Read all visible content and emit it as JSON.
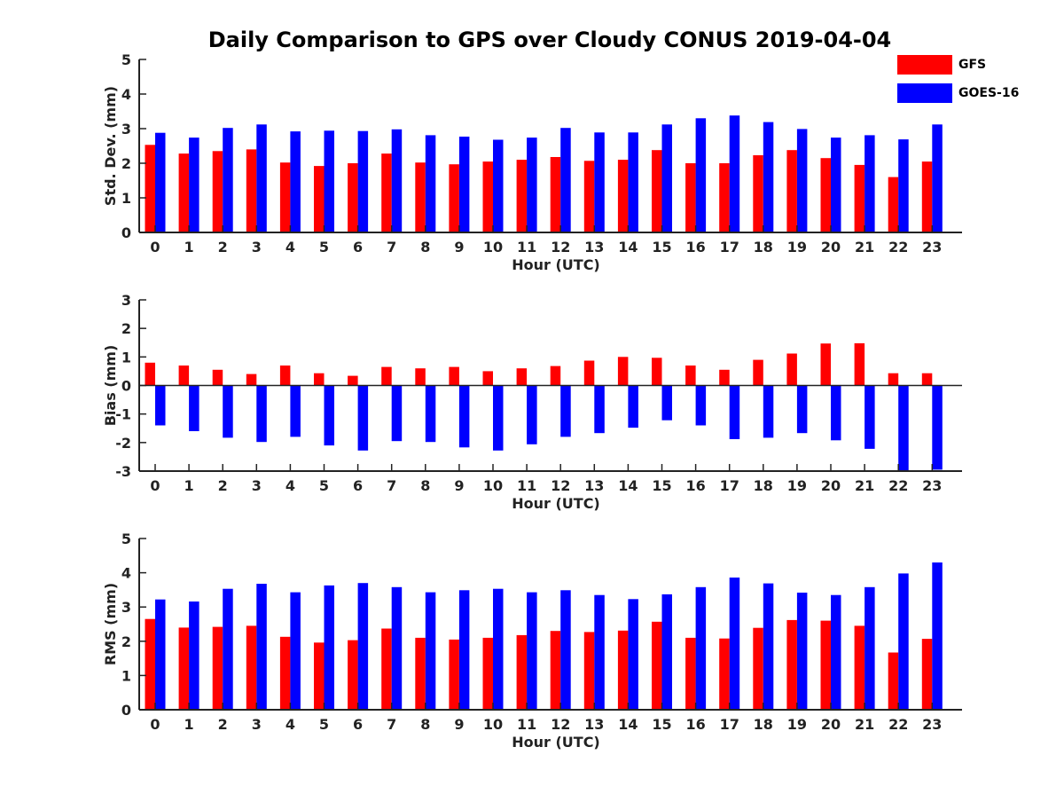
{
  "title": "Daily Comparison to GPS over Cloudy CONUS 2019-04-04",
  "legend": [
    {
      "name": "GFS",
      "color": "#ff0000"
    },
    {
      "name": "GOES-16",
      "color": "#0000ff"
    }
  ],
  "chart_data": [
    {
      "type": "bar",
      "ylabel": "Std. Dev. (mm)",
      "xlabel": "Hour (UTC)",
      "ylim": [
        0,
        5
      ],
      "yticks": [
        0,
        1,
        2,
        3,
        4,
        5
      ],
      "categories": [
        "0",
        "1",
        "2",
        "3",
        "4",
        "5",
        "6",
        "7",
        "8",
        "9",
        "10",
        "11",
        "12",
        "13",
        "14",
        "15",
        "16",
        "17",
        "18",
        "19",
        "20",
        "21",
        "22",
        "23"
      ],
      "series": [
        {
          "name": "GFS",
          "color": "#ff0000",
          "values": [
            2.53,
            2.28,
            2.35,
            2.4,
            2.02,
            1.92,
            2.0,
            2.28,
            2.02,
            1.97,
            2.05,
            2.1,
            2.18,
            2.07,
            2.1,
            2.38,
            2.0,
            2.0,
            2.23,
            2.38,
            2.15,
            1.95,
            1.6,
            2.05
          ]
        },
        {
          "name": "GOES-16",
          "color": "#0000ff",
          "values": [
            2.88,
            2.74,
            3.02,
            3.12,
            2.92,
            2.94,
            2.93,
            2.98,
            2.81,
            2.77,
            2.68,
            2.74,
            3.02,
            2.89,
            2.89,
            3.12,
            3.3,
            3.38,
            3.19,
            2.99,
            2.74,
            2.81,
            2.69,
            3.12
          ]
        }
      ]
    },
    {
      "type": "bar",
      "ylabel": "Bias (mm)",
      "xlabel": "Hour (UTC)",
      "ylim": [
        -3,
        3
      ],
      "yticks": [
        -3,
        -2,
        -1,
        0,
        1,
        2,
        3
      ],
      "categories": [
        "0",
        "1",
        "2",
        "3",
        "4",
        "5",
        "6",
        "7",
        "8",
        "9",
        "10",
        "11",
        "12",
        "13",
        "14",
        "15",
        "16",
        "17",
        "18",
        "19",
        "20",
        "21",
        "22",
        "23"
      ],
      "series": [
        {
          "name": "GFS",
          "color": "#ff0000",
          "values": [
            0.8,
            0.7,
            0.55,
            0.4,
            0.7,
            0.43,
            0.34,
            0.65,
            0.6,
            0.65,
            0.5,
            0.6,
            0.68,
            0.87,
            1.0,
            0.97,
            0.7,
            0.55,
            0.9,
            1.12,
            1.47,
            1.48,
            0.43,
            0.43
          ]
        },
        {
          "name": "GOES-16",
          "color": "#0000ff",
          "values": [
            -1.4,
            -1.6,
            -1.83,
            -1.98,
            -1.8,
            -2.1,
            -2.28,
            -1.95,
            -1.98,
            -2.17,
            -2.28,
            -2.06,
            -1.8,
            -1.67,
            -1.48,
            -1.22,
            -1.4,
            -1.88,
            -1.83,
            -1.67,
            -1.92,
            -2.22,
            -2.97,
            -2.95
          ]
        }
      ]
    },
    {
      "type": "bar",
      "ylabel": "RMS (mm)",
      "xlabel": "Hour (UTC)",
      "ylim": [
        0,
        5
      ],
      "yticks": [
        0,
        1,
        2,
        3,
        4,
        5
      ],
      "categories": [
        "0",
        "1",
        "2",
        "3",
        "4",
        "5",
        "6",
        "7",
        "8",
        "9",
        "10",
        "11",
        "12",
        "13",
        "14",
        "15",
        "16",
        "17",
        "18",
        "19",
        "20",
        "21",
        "22",
        "23"
      ],
      "series": [
        {
          "name": "GFS",
          "color": "#ff0000",
          "values": [
            2.65,
            2.4,
            2.42,
            2.45,
            2.13,
            1.96,
            2.03,
            2.37,
            2.1,
            2.05,
            2.1,
            2.18,
            2.3,
            2.27,
            2.31,
            2.57,
            2.1,
            2.08,
            2.39,
            2.62,
            2.6,
            2.45,
            1.67,
            2.07
          ]
        },
        {
          "name": "GOES-16",
          "color": "#0000ff",
          "values": [
            3.22,
            3.16,
            3.53,
            3.68,
            3.43,
            3.63,
            3.7,
            3.58,
            3.43,
            3.49,
            3.53,
            3.43,
            3.49,
            3.35,
            3.23,
            3.37,
            3.58,
            3.86,
            3.69,
            3.42,
            3.35,
            3.58,
            3.98,
            4.3
          ]
        }
      ]
    }
  ]
}
